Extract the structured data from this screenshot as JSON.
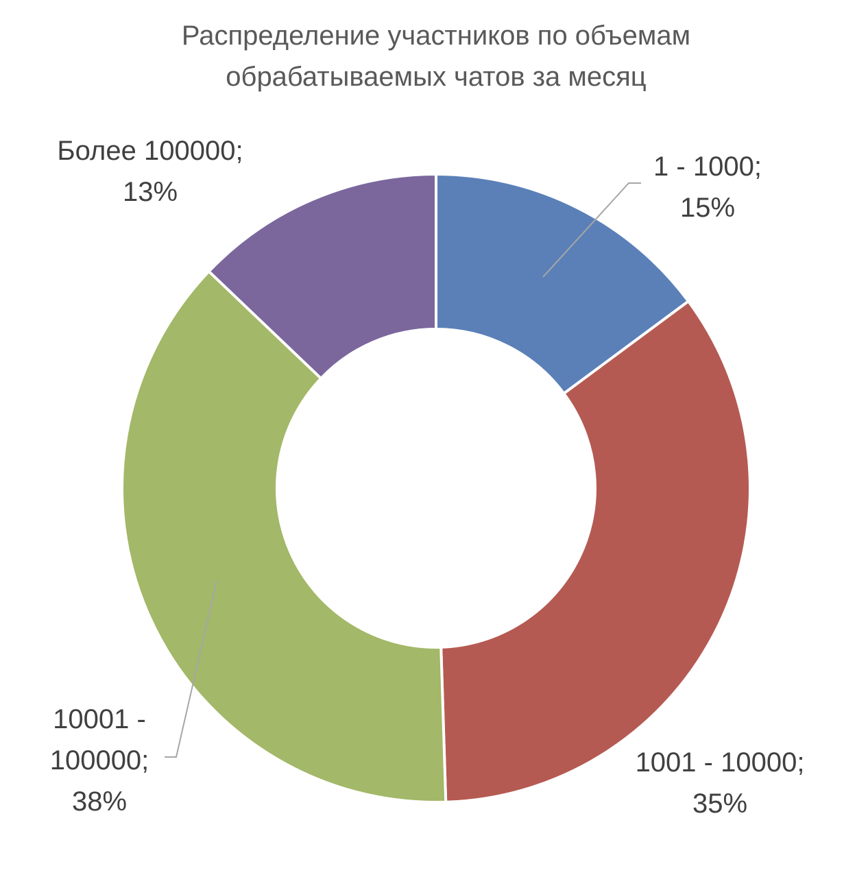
{
  "chart_data": {
    "type": "pie",
    "variant": "doughnut",
    "title_lines": [
      "Распределение участников по объемам",
      "обрабатываемых чатов за месяц"
    ],
    "categories": [
      "1 - 1000",
      "1001 - 10000",
      "10001 - 100000",
      "Более 100000"
    ],
    "values": [
      15,
      35,
      38,
      13
    ],
    "unit": "%",
    "colors": [
      "#5b80b8",
      "#b55a52",
      "#a3b868",
      "#7b679c"
    ],
    "data_labels": [
      {
        "lines": [
          "1 - 1000;",
          "15%"
        ]
      },
      {
        "lines": [
          "1001 - 10000;",
          "35%"
        ]
      },
      {
        "lines": [
          "10001 -",
          "100000;",
          "38%"
        ]
      },
      {
        "lines": [
          "Более 100000;",
          "13%"
        ]
      }
    ],
    "legend": "none"
  }
}
